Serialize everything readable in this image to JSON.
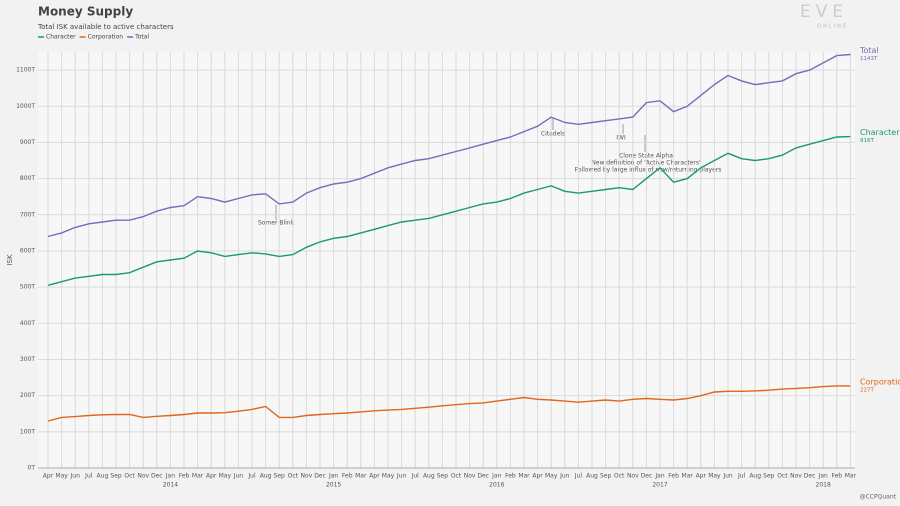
{
  "chart_data": {
    "type": "line",
    "title": "Money Supply",
    "subtitle": "Total ISK available to active characters",
    "ylabel": "ISK",
    "logo": "EVE",
    "logo_sub": "ONLINE",
    "credit": "@CCPQuant",
    "x": [
      "2013-04",
      "2013-05",
      "2013-06",
      "2013-07",
      "2013-08",
      "2013-09",
      "2013-10",
      "2013-11",
      "2013-12",
      "2014-01",
      "2014-02",
      "2014-03",
      "2014-04",
      "2014-05",
      "2014-06",
      "2014-07",
      "2014-08",
      "2014-09",
      "2014-10",
      "2014-11",
      "2014-12",
      "2015-01",
      "2015-02",
      "2015-03",
      "2015-04",
      "2015-05",
      "2015-06",
      "2015-07",
      "2015-08",
      "2015-09",
      "2015-10",
      "2015-11",
      "2015-12",
      "2016-01",
      "2016-02",
      "2016-03",
      "2016-04",
      "2016-05",
      "2016-06",
      "2016-07",
      "2016-08",
      "2016-09",
      "2016-10",
      "2016-11",
      "2016-12",
      "2017-01",
      "2017-02",
      "2017-03",
      "2017-04",
      "2017-05",
      "2017-06",
      "2017-07",
      "2017-08",
      "2017-09",
      "2017-10",
      "2017-11",
      "2017-12",
      "2018-01",
      "2018-02",
      "2018-03"
    ],
    "xticks": [
      {
        "value": "2013-04",
        "label": "Apr"
      },
      {
        "value": "2013-05",
        "label": "May"
      },
      {
        "value": "2013-06",
        "label": "Jun"
      },
      {
        "value": "2013-07",
        "label": "Jul"
      },
      {
        "value": "2013-08",
        "label": "Aug"
      },
      {
        "value": "2013-09",
        "label": "Sep"
      },
      {
        "value": "2013-10",
        "label": "Oct"
      },
      {
        "value": "2013-11",
        "label": "Nov"
      },
      {
        "value": "2013-12",
        "label": "Dec"
      },
      {
        "value": "2014-01",
        "label": "Jan"
      },
      {
        "value": "2014-02",
        "label": "Feb"
      },
      {
        "value": "2014-03",
        "label": "Mar"
      },
      {
        "value": "2014-04",
        "label": "Apr"
      },
      {
        "value": "2014-05",
        "label": "May"
      },
      {
        "value": "2014-06",
        "label": "Jun"
      },
      {
        "value": "2014-07",
        "label": "Jul"
      },
      {
        "value": "2014-08",
        "label": "Aug"
      },
      {
        "value": "2014-09",
        "label": "Sep"
      },
      {
        "value": "2014-10",
        "label": "Oct"
      },
      {
        "value": "2014-11",
        "label": "Nov"
      },
      {
        "value": "2014-12",
        "label": "Dec"
      },
      {
        "value": "2015-01",
        "label": "Jan"
      },
      {
        "value": "2015-02",
        "label": "Feb"
      },
      {
        "value": "2015-03",
        "label": "Mar"
      },
      {
        "value": "2015-04",
        "label": "Apr"
      },
      {
        "value": "2015-05",
        "label": "May"
      },
      {
        "value": "2015-06",
        "label": "Jun"
      },
      {
        "value": "2015-07",
        "label": "Jul"
      },
      {
        "value": "2015-08",
        "label": "Aug"
      },
      {
        "value": "2015-09",
        "label": "Sep"
      },
      {
        "value": "2015-10",
        "label": "Oct"
      },
      {
        "value": "2015-11",
        "label": "Nov"
      },
      {
        "value": "2015-12",
        "label": "Dec"
      },
      {
        "value": "2016-01",
        "label": "Jan"
      },
      {
        "value": "2016-02",
        "label": "Feb"
      },
      {
        "value": "2016-03",
        "label": "Mar"
      },
      {
        "value": "2016-04",
        "label": "Apr"
      },
      {
        "value": "2016-05",
        "label": "May"
      },
      {
        "value": "2016-06",
        "label": "Jun"
      },
      {
        "value": "2016-07",
        "label": "Jul"
      },
      {
        "value": "2016-08",
        "label": "Aug"
      },
      {
        "value": "2016-09",
        "label": "Sep"
      },
      {
        "value": "2016-10",
        "label": "Oct"
      },
      {
        "value": "2016-11",
        "label": "Nov"
      },
      {
        "value": "2016-12",
        "label": "Dec"
      },
      {
        "value": "2017-01",
        "label": "Jan"
      },
      {
        "value": "2017-02",
        "label": "Feb"
      },
      {
        "value": "2017-03",
        "label": "Mar"
      },
      {
        "value": "2017-04",
        "label": "Apr"
      },
      {
        "value": "2017-05",
        "label": "May"
      },
      {
        "value": "2017-06",
        "label": "Jun"
      },
      {
        "value": "2017-07",
        "label": "Jul"
      },
      {
        "value": "2017-08",
        "label": "Aug"
      },
      {
        "value": "2017-09",
        "label": "Sep"
      },
      {
        "value": "2017-10",
        "label": "Oct"
      },
      {
        "value": "2017-11",
        "label": "Nov"
      },
      {
        "value": "2017-12",
        "label": "Dec"
      },
      {
        "value": "2018-01",
        "label": "Jan"
      },
      {
        "value": "2018-02",
        "label": "Feb"
      },
      {
        "value": "2018-03",
        "label": "Mar"
      }
    ],
    "year_labels": [
      {
        "value": "2014-01",
        "label": "2014"
      },
      {
        "value": "2015-01",
        "label": "2015"
      },
      {
        "value": "2016-01",
        "label": "2016"
      },
      {
        "value": "2017-01",
        "label": "2017"
      },
      {
        "value": "2018-01",
        "label": "2018"
      }
    ],
    "ylim": [
      0,
      1150
    ],
    "yticks": [
      {
        "value": 0,
        "label": "0T"
      },
      {
        "value": 100,
        "label": "100T"
      },
      {
        "value": 200,
        "label": "200T"
      },
      {
        "value": 300,
        "label": "300T"
      },
      {
        "value": 400,
        "label": "400T"
      },
      {
        "value": 500,
        "label": "500T"
      },
      {
        "value": 600,
        "label": "600T"
      },
      {
        "value": 700,
        "label": "700T"
      },
      {
        "value": 800,
        "label": "800T"
      },
      {
        "value": 900,
        "label": "900T"
      },
      {
        "value": 1000,
        "label": "1000T"
      },
      {
        "value": 1100,
        "label": "1100T"
      }
    ],
    "grid": true,
    "series": [
      {
        "name": "Character",
        "color": "#1a9a6c",
        "last_label": "916T",
        "values": [
          505,
          515,
          525,
          530,
          535,
          535,
          540,
          555,
          570,
          575,
          580,
          600,
          595,
          585,
          590,
          595,
          592,
          585,
          590,
          610,
          625,
          635,
          640,
          650,
          660,
          670,
          680,
          685,
          690,
          700,
          710,
          720,
          730,
          735,
          745,
          760,
          770,
          780,
          765,
          760,
          765,
          770,
          775,
          770,
          800,
          830,
          790,
          800,
          830,
          850,
          870,
          855,
          850,
          855,
          865,
          885,
          895,
          905,
          915,
          916
        ]
      },
      {
        "name": "Corporation",
        "color": "#e0661a",
        "last_label": "227T",
        "values": [
          130,
          140,
          142,
          145,
          147,
          148,
          148,
          140,
          143,
          145,
          148,
          152,
          152,
          153,
          157,
          162,
          170,
          140,
          140,
          145,
          148,
          150,
          152,
          155,
          158,
          160,
          162,
          165,
          168,
          172,
          175,
          178,
          180,
          185,
          190,
          195,
          190,
          188,
          185,
          182,
          185,
          188,
          185,
          190,
          192,
          190,
          188,
          192,
          200,
          210,
          212,
          212,
          213,
          215,
          218,
          220,
          222,
          225,
          227,
          227
        ]
      },
      {
        "name": "Total",
        "color": "#7a6bb8",
        "last_label": "1143T",
        "values": [
          640,
          650,
          665,
          675,
          680,
          685,
          685,
          695,
          710,
          720,
          725,
          750,
          745,
          735,
          745,
          755,
          758,
          730,
          735,
          760,
          775,
          785,
          790,
          800,
          815,
          830,
          840,
          850,
          855,
          865,
          875,
          885,
          895,
          905,
          915,
          930,
          945,
          970,
          955,
          950,
          955,
          960,
          965,
          970,
          1010,
          1015,
          985,
          1000,
          1030,
          1060,
          1085,
          1070,
          1060,
          1065,
          1070,
          1090,
          1100,
          1120,
          1140,
          1143
        ]
      }
    ],
    "annotations": [
      "Somer Blink",
      "Citadels",
      "IWI",
      "Clone State Alpha",
      "New definition of 'Active Characters'",
      "Followed by large influx of new/returning players"
    ]
  }
}
